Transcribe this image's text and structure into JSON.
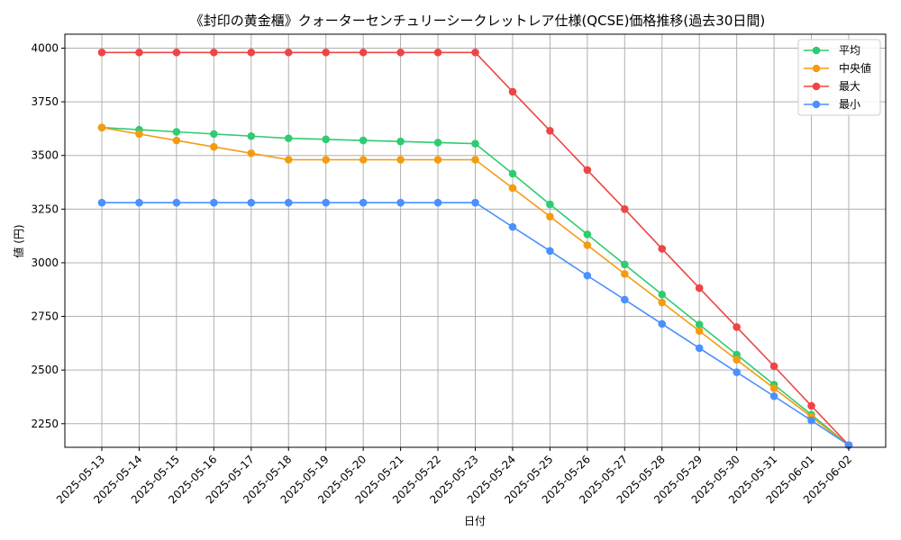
{
  "chart_data": {
    "type": "line",
    "title": "《封印の黄金櫃》クォーターセンチュリーシークレットレア仕様(QCSE)価格推移(過去30日間)",
    "xlabel": "日付",
    "ylabel": "値 (円)",
    "ylim": [
      2140,
      4065
    ],
    "yticks": [
      2250,
      2500,
      2750,
      3000,
      3250,
      3500,
      3750,
      4000
    ],
    "grid": true,
    "legend_position": "top-right",
    "categories": [
      "2025-05-13",
      "2025-05-14",
      "2025-05-15",
      "2025-05-16",
      "2025-05-17",
      "2025-05-18",
      "2025-05-19",
      "2025-05-20",
      "2025-05-21",
      "2025-05-22",
      "2025-05-23",
      "2025-05-24",
      "2025-05-25",
      "2025-05-26",
      "2025-05-27",
      "2025-05-28",
      "2025-05-29",
      "2025-05-30",
      "2025-05-31",
      "2025-06-01",
      "2025-06-02"
    ],
    "series": [
      {
        "name": "平均",
        "color": "#2ecc71",
        "values": [
          3630,
          3620,
          3610,
          3600,
          3590,
          3580,
          3575,
          3570,
          3565,
          3560,
          3555,
          3415,
          3272,
          3132,
          2992,
          2852,
          2712,
          2572,
          2432,
          2292,
          2150
        ]
      },
      {
        "name": "中央値",
        "color": "#f39c12",
        "values": [
          3630,
          3600,
          3570,
          3540,
          3510,
          3480,
          3480,
          3480,
          3480,
          3480,
          3480,
          3348,
          3215,
          3082,
          2948,
          2815,
          2682,
          2548,
          2415,
          2282,
          2150
        ]
      },
      {
        "name": "最大",
        "color": "#ef4444",
        "values": [
          3980,
          3980,
          3980,
          3980,
          3980,
          3980,
          3980,
          3980,
          3980,
          3980,
          3980,
          3797,
          3615,
          3432,
          3250,
          3065,
          2882,
          2700,
          2518,
          2333,
          2150
        ]
      },
      {
        "name": "最小",
        "color": "#4a90ff",
        "values": [
          3280,
          3280,
          3280,
          3280,
          3280,
          3280,
          3280,
          3280,
          3280,
          3280,
          3280,
          3167,
          3055,
          2940,
          2828,
          2715,
          2602,
          2490,
          2378,
          2265,
          2150
        ]
      }
    ]
  }
}
